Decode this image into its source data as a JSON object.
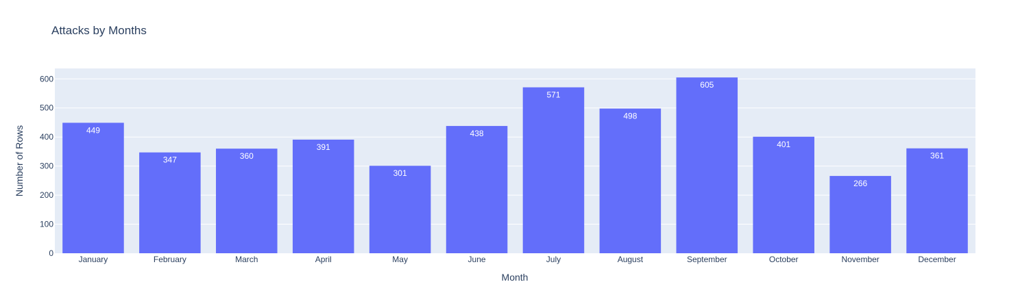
{
  "chart_data": {
    "type": "bar",
    "title": "Attacks by Months",
    "xlabel": "Month",
    "ylabel": "Number of Rows",
    "categories": [
      "January",
      "February",
      "March",
      "April",
      "May",
      "June",
      "July",
      "August",
      "September",
      "October",
      "November",
      "December"
    ],
    "values": [
      449,
      347,
      360,
      391,
      301,
      438,
      571,
      498,
      605,
      401,
      266,
      361
    ],
    "yticks": [
      0,
      100,
      200,
      300,
      400,
      500,
      600
    ],
    "ylim": [
      0,
      636
    ],
    "grid": true,
    "bar_color": "#636efa",
    "plot_bg": "#e5ecf6"
  }
}
